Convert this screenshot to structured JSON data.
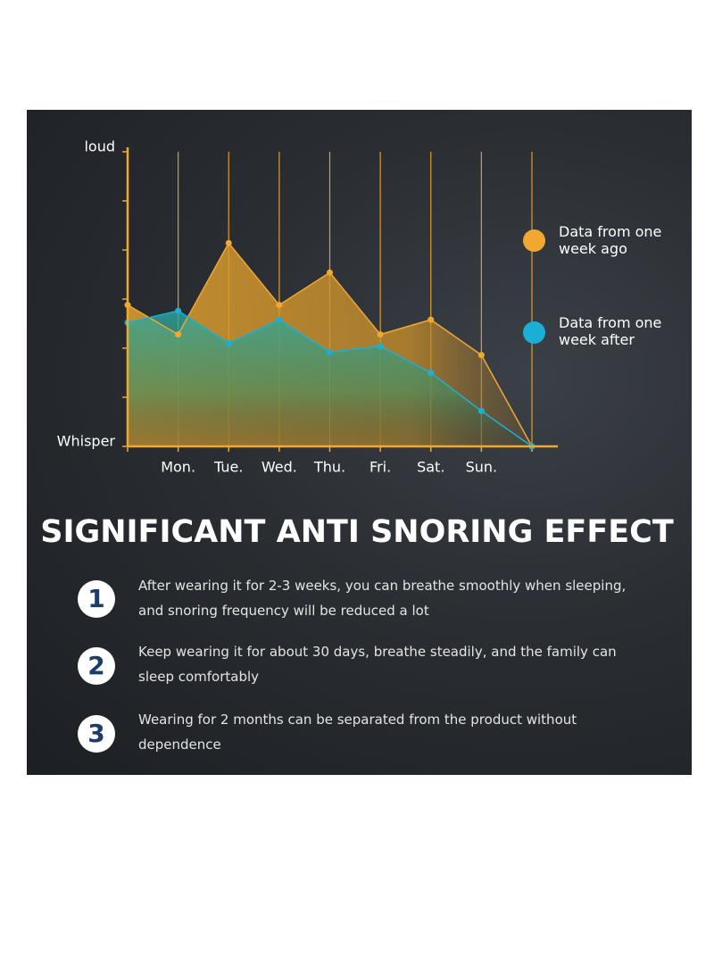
{
  "chart_data": {
    "type": "line",
    "categories": [
      null,
      "Mon.",
      "Tue.",
      "Wed.",
      "Thu.",
      "Fri.",
      "Sat.",
      "Sun.",
      null
    ],
    "series": [
      {
        "name": "Data from one week ago",
        "color": "#f0a830",
        "values": [
          48,
          38,
          69,
          48,
          59,
          38,
          43,
          31,
          0
        ]
      },
      {
        "name": "Data from one week after",
        "color": "#1ab0d6",
        "values": [
          42,
          46,
          35,
          43,
          32,
          34,
          25,
          12,
          0
        ]
      }
    ],
    "ylim": [
      0,
      100
    ],
    "yticks": [
      {
        "value": 0,
        "label": "Whisper"
      },
      {
        "value": 100,
        "label": "loud"
      }
    ]
  },
  "heading": "SIGNIFICANT ANTI SNORING EFFECT",
  "items": [
    {
      "number": "1",
      "text": "After wearing it for 2-3 weeks, you can breathe smoothly when sleeping, and snoring frequency will be reduced a lot"
    },
    {
      "number": "2",
      "text": "Keep wearing it for about 30 days, breathe steadily, and the family can sleep comfortably"
    },
    {
      "number": "3",
      "text": "Wearing for 2 months can be separated from the product without dependence"
    }
  ]
}
